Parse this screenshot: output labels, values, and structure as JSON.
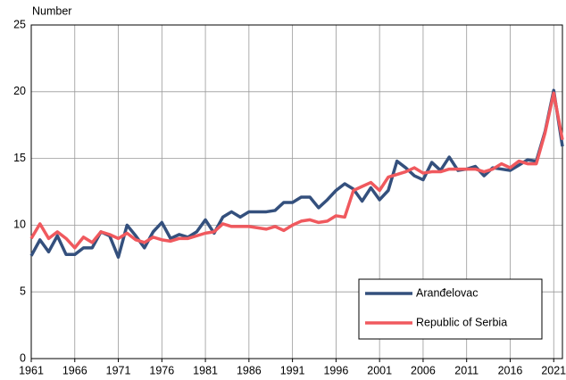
{
  "chart_data": {
    "type": "line",
    "y_label": "Number",
    "x": [
      1961,
      1962,
      1963,
      1964,
      1965,
      1966,
      1967,
      1968,
      1969,
      1970,
      1971,
      1972,
      1973,
      1974,
      1975,
      1976,
      1977,
      1978,
      1979,
      1980,
      1981,
      1982,
      1983,
      1984,
      1985,
      1986,
      1987,
      1988,
      1989,
      1990,
      1991,
      1992,
      1993,
      1994,
      1995,
      1996,
      1997,
      1998,
      1999,
      2000,
      2001,
      2002,
      2003,
      2004,
      2005,
      2006,
      2007,
      2008,
      2009,
      2010,
      2011,
      2012,
      2013,
      2014,
      2015,
      2016,
      2017,
      2018,
      2019,
      2020,
      2021,
      2022
    ],
    "series": [
      {
        "name": "Aranđelovac",
        "color": "#34507d",
        "values": [
          7.7,
          8.9,
          8.0,
          9.2,
          7.8,
          7.8,
          8.3,
          8.3,
          9.5,
          9.2,
          7.6,
          10.0,
          9.2,
          8.3,
          9.5,
          10.2,
          9.0,
          9.3,
          9.1,
          9.5,
          10.4,
          9.4,
          10.6,
          11.0,
          10.6,
          11.0,
          11.0,
          11.0,
          11.1,
          11.7,
          11.7,
          12.1,
          12.1,
          11.3,
          11.9,
          12.6,
          13.1,
          12.7,
          11.8,
          12.8,
          11.9,
          12.6,
          14.8,
          14.3,
          13.7,
          13.4,
          14.7,
          14.1,
          15.1,
          14.1,
          14.2,
          14.4,
          13.7,
          14.3,
          14.2,
          14.1,
          14.5,
          14.9,
          14.8,
          17.0,
          20.1,
          15.9
        ]
      },
      {
        "name": "Republic of Serbia",
        "color": "#f0595e",
        "values": [
          9.0,
          10.1,
          9.0,
          9.5,
          9.0,
          8.3,
          9.1,
          8.7,
          9.5,
          9.3,
          9.0,
          9.4,
          8.9,
          8.7,
          9.1,
          8.9,
          8.8,
          9.0,
          9.0,
          9.2,
          9.4,
          9.5,
          10.1,
          9.9,
          9.9,
          9.9,
          9.8,
          9.7,
          9.9,
          9.6,
          10.0,
          10.3,
          10.4,
          10.2,
          10.3,
          10.7,
          10.6,
          12.6,
          12.9,
          13.2,
          12.6,
          13.6,
          13.8,
          14.0,
          14.3,
          13.9,
          14.0,
          14.0,
          14.2,
          14.2,
          14.2,
          14.2,
          14.0,
          14.2,
          14.6,
          14.3,
          14.8,
          14.6,
          14.6,
          16.9,
          19.9,
          16.4
        ]
      }
    ],
    "xlim": [
      1961,
      2022
    ],
    "xticks": [
      1961,
      1966,
      1971,
      1976,
      1981,
      1986,
      1991,
      1996,
      2001,
      2006,
      2011,
      2016,
      2021
    ],
    "ylim": [
      0,
      25
    ],
    "yticks": [
      0,
      5,
      10,
      15,
      20,
      25
    ],
    "grid": true,
    "legend": "bottom-right"
  }
}
